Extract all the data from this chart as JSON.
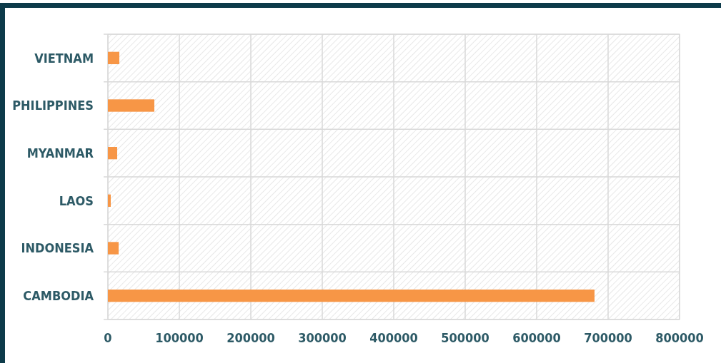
{
  "chart_data": {
    "type": "bar",
    "orientation": "horizontal",
    "categories": [
      "VIETNAM",
      "PHILIPPINES",
      "MYANMAR",
      "LAOS",
      "INDONESIA",
      "CAMBODIA"
    ],
    "values": [
      16000,
      65000,
      13000,
      4000,
      15000,
      681000
    ],
    "color": "#f79646",
    "xlim": [
      0,
      800000
    ],
    "xticks": [
      0,
      100000,
      200000,
      300000,
      400000,
      500000,
      600000,
      700000,
      800000
    ],
    "grid": true
  }
}
